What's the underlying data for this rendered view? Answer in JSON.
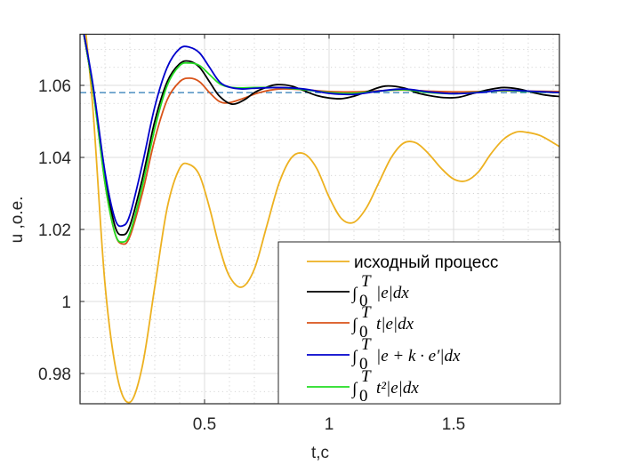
{
  "chart_data": {
    "type": "line",
    "title": "",
    "xlabel": "t,c",
    "ylabel": "u ,o.e.",
    "xlim": [
      0.0,
      1.925
    ],
    "ylim": [
      0.9716,
      1.0742
    ],
    "xticks": [
      0.5,
      1,
      1.5
    ],
    "xtick_labels": [
      "0.5",
      "1",
      "1.5"
    ],
    "yticks": [
      0.98,
      1.0,
      1.02,
      1.04,
      1.06
    ],
    "ytick_labels": [
      "0.98",
      "1",
      "1.02",
      "1.04",
      "1.06"
    ],
    "grid": true,
    "minor_grid": true,
    "legend_position": "lower right",
    "reference_line": {
      "y": 1.058,
      "style": "dashed",
      "color": "#2a7ab5"
    },
    "series": [
      {
        "name": "исходный процесс",
        "color": "#edb120",
        "x": [
          0.0,
          0.05,
          0.1,
          0.15,
          0.2,
          0.25,
          0.3,
          0.35,
          0.4,
          0.44,
          0.48,
          0.52,
          0.56,
          0.6,
          0.65,
          0.7,
          0.75,
          0.8,
          0.85,
          0.9,
          0.95,
          1.0,
          1.05,
          1.1,
          1.15,
          1.2,
          1.25,
          1.3,
          1.35,
          1.4,
          1.45,
          1.5,
          1.55,
          1.6,
          1.65,
          1.7,
          1.75,
          1.79,
          1.85,
          1.925
        ],
        "values": [
          1.09,
          1.055,
          1.005,
          0.979,
          0.972,
          0.982,
          1.004,
          1.026,
          1.037,
          1.038,
          1.035,
          1.026,
          1.015,
          1.007,
          1.004,
          1.009,
          1.021,
          1.033,
          1.04,
          1.041,
          1.037,
          1.029,
          1.023,
          1.022,
          1.026,
          1.033,
          1.04,
          1.044,
          1.044,
          1.041,
          1.037,
          1.034,
          1.0335,
          1.036,
          1.041,
          1.045,
          1.047,
          1.047,
          1.046,
          1.043
        ]
      },
      {
        "name": "∫₀ᵀ |e|dx",
        "legend_parts": [
          "∫",
          "0",
          "T",
          "|e|dx"
        ],
        "color": "#000000",
        "x": [
          0.0,
          0.05,
          0.1,
          0.14,
          0.17,
          0.2,
          0.25,
          0.3,
          0.35,
          0.4,
          0.44,
          0.48,
          0.52,
          0.56,
          0.61,
          0.66,
          0.7,
          0.75,
          0.79,
          0.85,
          0.9,
          0.95,
          1.0,
          1.05,
          1.1,
          1.15,
          1.225,
          1.3,
          1.35,
          1.4,
          1.46,
          1.52,
          1.58,
          1.64,
          1.7,
          1.76,
          1.82,
          1.87,
          1.925
        ],
        "values": [
          1.08,
          1.06,
          1.035,
          1.021,
          1.0185,
          1.021,
          1.034,
          1.05,
          1.061,
          1.066,
          1.0667,
          1.065,
          1.061,
          1.057,
          1.0548,
          1.056,
          1.058,
          1.0595,
          1.0602,
          1.0598,
          1.0585,
          1.0572,
          1.0565,
          1.0563,
          1.057,
          1.0582,
          1.0598,
          1.0593,
          1.058,
          1.0572,
          1.0566,
          1.0567,
          1.0578,
          1.0588,
          1.0594,
          1.059,
          1.058,
          1.0573,
          1.0569
        ]
      },
      {
        "name": "∫₀ᵀ t|e|dx",
        "legend_parts": [
          "∫",
          "0",
          "T",
          "t|e|dx"
        ],
        "color": "#d95319",
        "x": [
          0.0,
          0.05,
          0.1,
          0.14,
          0.17,
          0.2,
          0.25,
          0.3,
          0.35,
          0.4,
          0.44,
          0.48,
          0.52,
          0.56,
          0.6,
          0.66,
          0.72,
          0.8,
          0.9,
          1.0,
          1.1,
          1.2,
          1.3,
          1.4,
          1.5,
          1.6,
          1.7,
          1.8,
          1.925
        ],
        "values": [
          1.08,
          1.06,
          1.033,
          1.019,
          1.016,
          1.018,
          1.03,
          1.045,
          1.056,
          1.061,
          1.062,
          1.061,
          1.058,
          1.0555,
          1.0552,
          1.0565,
          1.058,
          1.059,
          1.0588,
          1.0583,
          1.0582,
          1.0585,
          1.0587,
          1.0584,
          1.0582,
          1.0583,
          1.0585,
          1.0584,
          1.0583
        ]
      },
      {
        "name": "∫₀ᵀ |e + k · e′|dx",
        "legend_parts": [
          "∫",
          "0",
          "T",
          "|e + k · e′|dx"
        ],
        "color": "#0000cc",
        "x": [
          0.0,
          0.05,
          0.1,
          0.14,
          0.17,
          0.2,
          0.25,
          0.3,
          0.35,
          0.4,
          0.44,
          0.48,
          0.52,
          0.56,
          0.6,
          0.65,
          0.7,
          0.8,
          0.9,
          1.0,
          1.1,
          1.2,
          1.3,
          1.4,
          1.5,
          1.6,
          1.7,
          1.8,
          1.925
        ],
        "values": [
          1.08,
          1.061,
          1.036,
          1.023,
          1.021,
          1.024,
          1.038,
          1.054,
          1.065,
          1.0702,
          1.0706,
          1.069,
          1.065,
          1.061,
          1.0595,
          1.059,
          1.0592,
          1.0594,
          1.059,
          1.0578,
          1.0575,
          1.0584,
          1.059,
          1.0582,
          1.0577,
          1.058,
          1.0587,
          1.0584,
          1.058
        ]
      },
      {
        "name": "∫₀ᵀ t²|e|dx",
        "legend_parts": [
          "∫",
          "0",
          "T",
          "t²|e|dx"
        ],
        "color": "#22dd22",
        "x": [
          0.0,
          0.05,
          0.1,
          0.14,
          0.17,
          0.2,
          0.25,
          0.3,
          0.35,
          0.4,
          0.44,
          0.48,
          0.52,
          0.56,
          0.6,
          0.65,
          0.7,
          0.8,
          0.9,
          1.0,
          1.1,
          1.2,
          1.3,
          1.4,
          1.5,
          1.6,
          1.7,
          1.8,
          1.925
        ],
        "values": [
          1.08,
          1.06,
          1.033,
          1.019,
          1.0165,
          1.019,
          1.032,
          1.048,
          1.06,
          1.0655,
          1.0662,
          1.0655,
          1.063,
          1.0605,
          1.0595,
          1.0593,
          1.0594,
          1.0594,
          1.0588,
          1.058,
          1.0578,
          1.0584,
          1.0588,
          1.058,
          1.0577,
          1.0581,
          1.0586,
          1.0583,
          1.058
        ]
      }
    ]
  }
}
